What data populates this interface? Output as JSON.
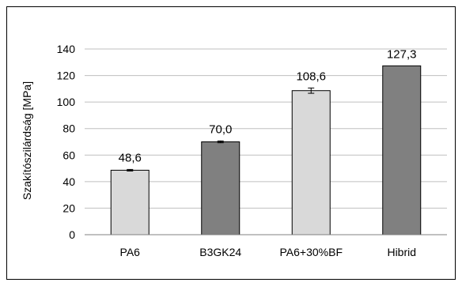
{
  "chart_data": {
    "type": "bar",
    "title": "",
    "xlabel": "",
    "ylabel": "Szakítószilárdság [MPa]",
    "ylim": [
      0,
      140
    ],
    "yticks": [
      0,
      20,
      40,
      60,
      80,
      100,
      120,
      140
    ],
    "grid": true,
    "categories": [
      "PA6",
      "B3GK24",
      "PA6+30%BF",
      "Hibrid"
    ],
    "values": [
      48.6,
      70.0,
      108.6,
      127.3
    ],
    "data_labels": [
      "48,6",
      "70,0",
      "108,6",
      "127,3"
    ],
    "error": [
      0.6,
      0.7,
      2.0,
      0.0
    ],
    "bar_colors": [
      "#d9d9d9",
      "#808080",
      "#d9d9d9",
      "#808080"
    ],
    "gridline_color": "#bfbfbf",
    "frame_color": "#000000"
  }
}
